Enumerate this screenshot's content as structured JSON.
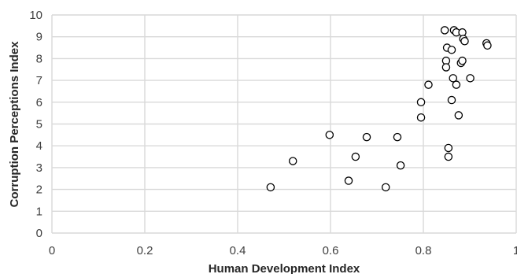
{
  "chart_data": {
    "type": "scatter",
    "title": "",
    "xlabel": "Human Development Index",
    "ylabel": "Corruption Perceptions Index",
    "xlim": [
      0,
      1
    ],
    "ylim": [
      0,
      10
    ],
    "x_ticks": [
      0,
      0.2,
      0.4,
      0.6,
      0.8,
      1
    ],
    "x_tick_labels": [
      "0",
      "0.2",
      "0.4",
      "0.6",
      "0.8",
      "1"
    ],
    "y_ticks": [
      0,
      1,
      2,
      3,
      4,
      5,
      6,
      7,
      8,
      9,
      10
    ],
    "y_tick_labels": [
      "0",
      "1",
      "2",
      "3",
      "4",
      "5",
      "6",
      "7",
      "8",
      "9",
      "10"
    ],
    "grid": true,
    "legend": false,
    "marker": "open-circle",
    "colors": {
      "marker_stroke": "#000000",
      "marker_fill": "#ffffff",
      "grid": "#d9d9d9",
      "text": "#404040"
    },
    "points": [
      {
        "x": 0.471,
        "y": 2.1
      },
      {
        "x": 0.519,
        "y": 3.3
      },
      {
        "x": 0.598,
        "y": 4.5
      },
      {
        "x": 0.639,
        "y": 2.4
      },
      {
        "x": 0.654,
        "y": 3.5
      },
      {
        "x": 0.678,
        "y": 4.4
      },
      {
        "x": 0.719,
        "y": 2.1
      },
      {
        "x": 0.744,
        "y": 4.4
      },
      {
        "x": 0.751,
        "y": 3.1
      },
      {
        "x": 0.795,
        "y": 6.0
      },
      {
        "x": 0.795,
        "y": 5.3
      },
      {
        "x": 0.811,
        "y": 6.8
      },
      {
        "x": 0.846,
        "y": 9.3
      },
      {
        "x": 0.849,
        "y": 7.9
      },
      {
        "x": 0.849,
        "y": 7.6
      },
      {
        "x": 0.851,
        "y": 8.5
      },
      {
        "x": 0.854,
        "y": 3.9
      },
      {
        "x": 0.854,
        "y": 3.5
      },
      {
        "x": 0.861,
        "y": 8.4
      },
      {
        "x": 0.861,
        "y": 6.1
      },
      {
        "x": 0.864,
        "y": 7.1
      },
      {
        "x": 0.866,
        "y": 9.3
      },
      {
        "x": 0.871,
        "y": 9.2
      },
      {
        "x": 0.871,
        "y": 6.8
      },
      {
        "x": 0.876,
        "y": 5.4
      },
      {
        "x": 0.881,
        "y": 7.8
      },
      {
        "x": 0.884,
        "y": 9.2
      },
      {
        "x": 0.884,
        "y": 7.9
      },
      {
        "x": 0.886,
        "y": 8.9
      },
      {
        "x": 0.889,
        "y": 8.8
      },
      {
        "x": 0.901,
        "y": 7.1
      },
      {
        "x": 0.936,
        "y": 8.7
      },
      {
        "x": 0.938,
        "y": 8.6
      }
    ]
  }
}
